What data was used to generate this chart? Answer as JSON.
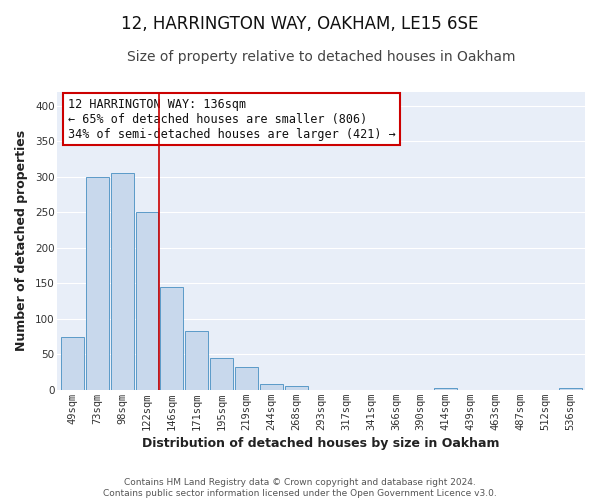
{
  "title": "12, HARRINGTON WAY, OAKHAM, LE15 6SE",
  "subtitle": "Size of property relative to detached houses in Oakham",
  "xlabel": "Distribution of detached houses by size in Oakham",
  "ylabel": "Number of detached properties",
  "bin_labels": [
    "49sqm",
    "73sqm",
    "98sqm",
    "122sqm",
    "146sqm",
    "171sqm",
    "195sqm",
    "219sqm",
    "244sqm",
    "268sqm",
    "293sqm",
    "317sqm",
    "341sqm",
    "366sqm",
    "390sqm",
    "414sqm",
    "439sqm",
    "463sqm",
    "487sqm",
    "512sqm",
    "536sqm"
  ],
  "bar_heights": [
    75,
    300,
    305,
    250,
    145,
    83,
    45,
    32,
    8,
    6,
    0,
    0,
    0,
    0,
    0,
    2,
    0,
    0,
    0,
    0,
    2
  ],
  "bar_color": "#c8d8ec",
  "bar_edge_color": "#5b9ac8",
  "annotation_title": "12 HARRINGTON WAY: 136sqm",
  "annotation_line1": "← 65% of detached houses are smaller (806)",
  "annotation_line2": "34% of semi-detached houses are larger (421) →",
  "annotation_box_facecolor": "#ffffff",
  "annotation_box_edgecolor": "#cc0000",
  "highlight_line_color": "#cc0000",
  "ylim": [
    0,
    420
  ],
  "yticks": [
    0,
    50,
    100,
    150,
    200,
    250,
    300,
    350,
    400
  ],
  "footer_line1": "Contains HM Land Registry data © Crown copyright and database right 2024.",
  "footer_line2": "Contains public sector information licensed under the Open Government Licence v3.0.",
  "background_color": "#ffffff",
  "plot_bg_color": "#e8eef8",
  "grid_color": "#ffffff",
  "title_fontsize": 12,
  "subtitle_fontsize": 10,
  "axis_label_fontsize": 9,
  "tick_fontsize": 7.5,
  "annotation_fontsize": 8.5,
  "footer_fontsize": 6.5
}
